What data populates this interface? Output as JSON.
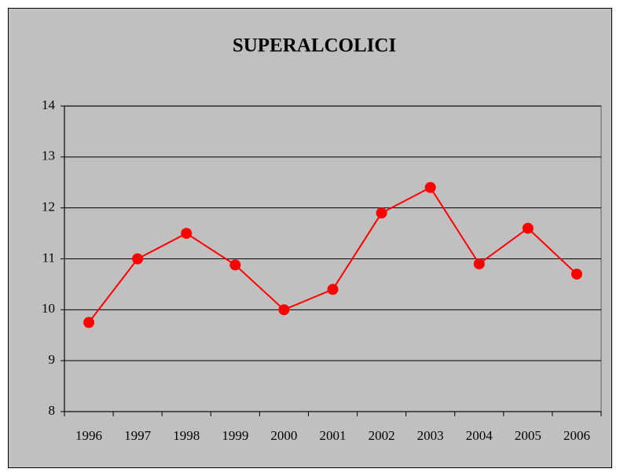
{
  "chart_data": {
    "type": "line",
    "title": "SUPERALCOLICI",
    "categories": [
      "1996",
      "1997",
      "1998",
      "1999",
      "2000",
      "2001",
      "2002",
      "2003",
      "2004",
      "2005",
      "2006"
    ],
    "values": [
      9.75,
      11.0,
      11.5,
      10.88,
      10.0,
      10.4,
      11.9,
      12.4,
      10.9,
      11.6,
      10.7
    ],
    "color": "#ff0000",
    "ylim": [
      8,
      14
    ],
    "yticks": [
      8,
      9,
      10,
      11,
      12,
      13,
      14
    ],
    "grid": true
  }
}
